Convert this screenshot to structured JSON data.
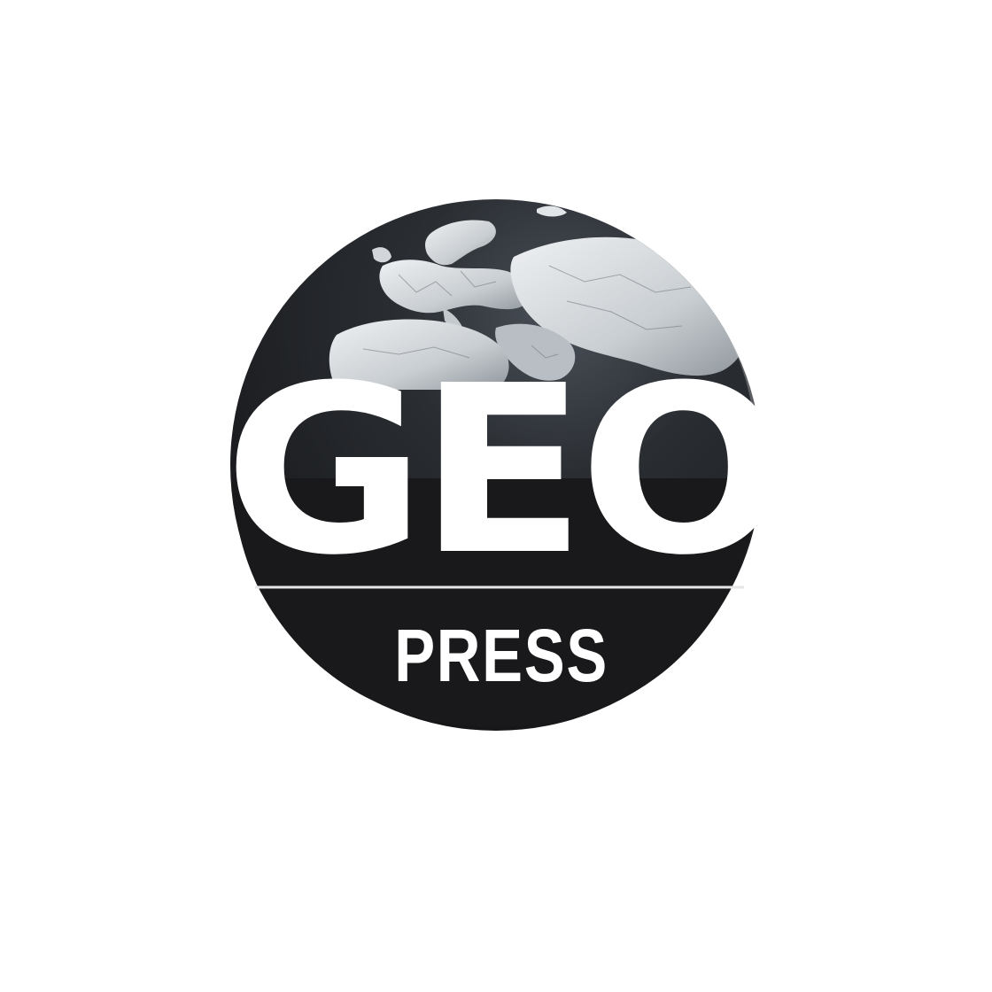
{
  "logo": {
    "main_text": "GEO",
    "sub_text": "PRESS",
    "colors": {
      "background": "#ffffff",
      "globe_dark": "#1b1b1d",
      "globe_mid": "#2c3035",
      "land": "#d9dde0",
      "land_shadow": "#9aa1a7",
      "text": "#ffffff",
      "rule": "#e6e6e6"
    },
    "icon": "globe-icon"
  }
}
